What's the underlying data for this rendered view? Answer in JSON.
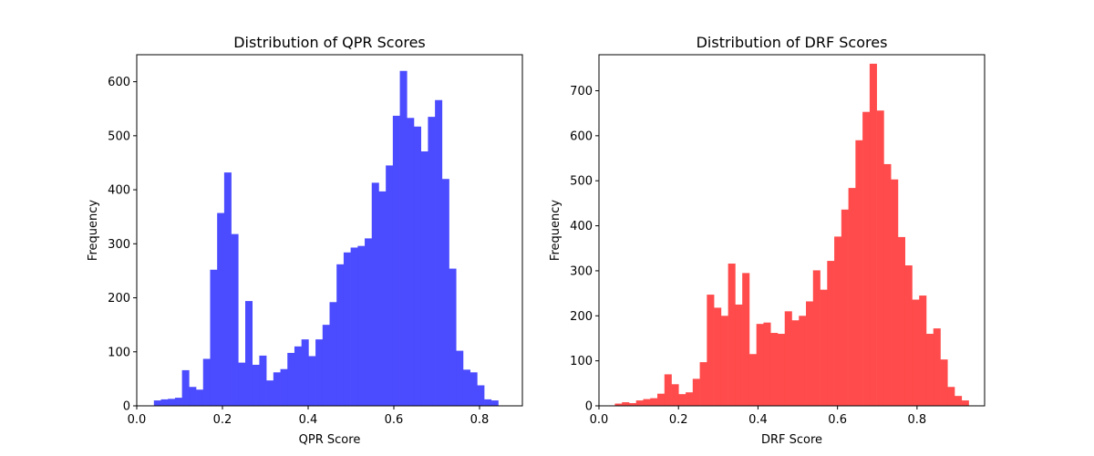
{
  "chart_data": [
    {
      "type": "bar",
      "title": "Distribution of QPR Scores",
      "xlabel": "QPR Score",
      "ylabel": "Frequency",
      "color": "#4b4bff",
      "xlim": [
        0.0,
        0.9
      ],
      "ylim": [
        0,
        650
      ],
      "xticks": [
        "0.0",
        "0.2",
        "0.4",
        "0.6",
        "0.8"
      ],
      "yticks": [
        "0",
        "100",
        "200",
        "300",
        "400",
        "500",
        "600"
      ],
      "bin_start": 0.04,
      "bin_width": 0.0164,
      "values": [
        10,
        12,
        13,
        15,
        66,
        35,
        30,
        87,
        252,
        357,
        432,
        318,
        80,
        194,
        76,
        93,
        47,
        62,
        68,
        98,
        110,
        123,
        92,
        123,
        150,
        192,
        262,
        284,
        293,
        296,
        310,
        413,
        397,
        445,
        537,
        620,
        533,
        517,
        471,
        535,
        566,
        420,
        254,
        102,
        67,
        62,
        38,
        12,
        10
      ]
    },
    {
      "type": "bar",
      "title": "Distribution of DRF Scores",
      "xlabel": "DRF Score",
      "ylabel": "Frequency",
      "color": "#ff4b4b",
      "xlim": [
        0.0,
        0.97
      ],
      "ylim": [
        0,
        780
      ],
      "xticks": [
        "0.0",
        "0.2",
        "0.4",
        "0.6",
        "0.8"
      ],
      "yticks": [
        "0",
        "100",
        "200",
        "300",
        "400",
        "500",
        "600",
        "700"
      ],
      "bin_start": 0.04,
      "bin_width": 0.0178,
      "values": [
        5,
        8,
        6,
        12,
        15,
        17,
        27,
        70,
        48,
        26,
        30,
        60,
        97,
        247,
        218,
        200,
        316,
        225,
        295,
        115,
        182,
        185,
        162,
        160,
        210,
        190,
        200,
        232,
        301,
        258,
        322,
        376,
        436,
        484,
        590,
        653,
        760,
        656,
        537,
        503,
        375,
        312,
        236,
        245,
        160,
        172,
        103,
        42,
        22,
        12
      ]
    }
  ]
}
